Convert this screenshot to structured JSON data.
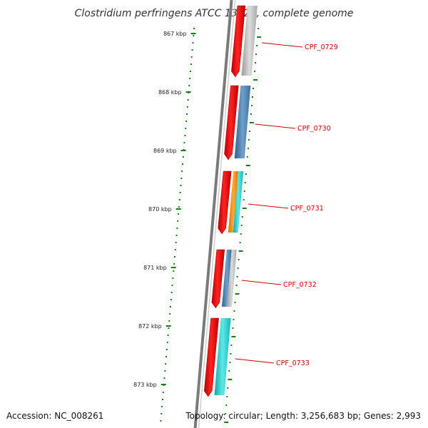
{
  "title": "Clostridium perfringens ATCC 13124, complete genome",
  "footer": {
    "accession": "Accession: NC_008261",
    "summary": "Topology: circular; Length: 3,256,683 bp; Genes: 2,993"
  },
  "colors": {
    "backbone": "#7a7a7a",
    "cds": "#ee0000",
    "tick": "#1a7a1a",
    "label": "#cc0000",
    "gray": "#bdbdbd",
    "steel": "#4f7fab",
    "cyan": "#22c8c8",
    "orange": "#ff8c00"
  },
  "scale_ticks": [
    {
      "label": "867 kbp"
    },
    {
      "label": "868 kbp"
    },
    {
      "label": "869 kbp"
    },
    {
      "label": "870 kbp"
    },
    {
      "label": "871 kbp"
    },
    {
      "label": "872 kbp"
    },
    {
      "label": "873 kbp"
    }
  ],
  "genes": [
    {
      "label": "CPF_0729",
      "features": [
        "gray"
      ]
    },
    {
      "label": "CPF_0730",
      "features": [
        "steel"
      ]
    },
    {
      "label": "CPF_0731",
      "features": [
        "orange",
        "cyan"
      ]
    },
    {
      "label": "CPF_0732",
      "features": [
        "steel",
        "gray"
      ]
    },
    {
      "label": "CPF_0733",
      "features": [
        "cyan"
      ]
    }
  ]
}
